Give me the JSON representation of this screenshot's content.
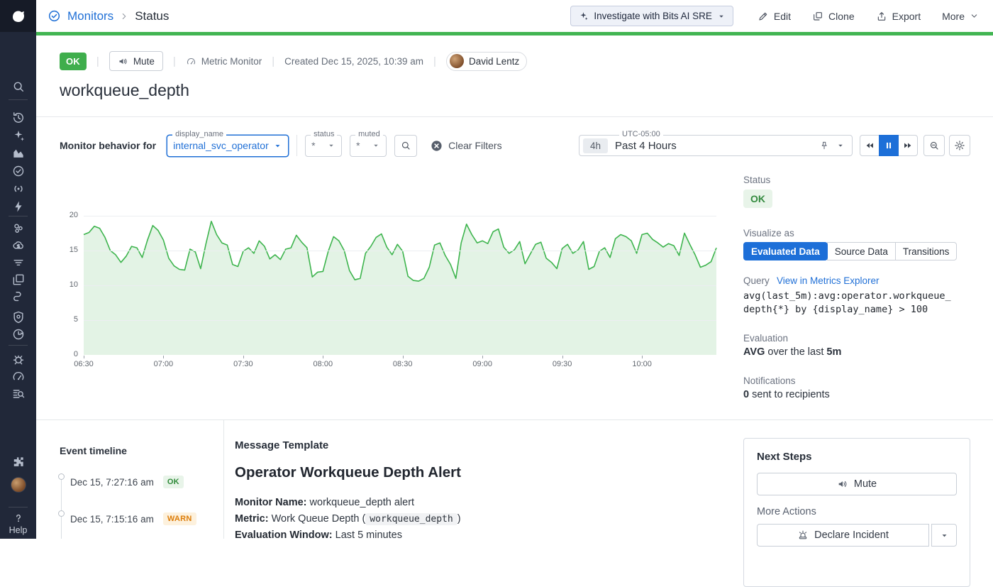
{
  "breadcrumb": {
    "section": "Monitors",
    "page": "Status"
  },
  "topbar": {
    "investigate_label": "Investigate with Bits AI SRE",
    "edit_label": "Edit",
    "clone_label": "Clone",
    "export_label": "Export",
    "more_label": "More"
  },
  "status_bar": {
    "status_badge": "OK",
    "mute_label": "Mute",
    "monitor_type": "Metric Monitor",
    "created": "Created Dec 15, 2025, 10:39 am",
    "author": "David Lentz"
  },
  "title": "workqueue_depth",
  "filters": {
    "behavior_label": "Monitor behavior for",
    "display_name": {
      "label": "display_name",
      "value": "internal_svc_operator"
    },
    "status": {
      "label": "status",
      "value": "*"
    },
    "muted": {
      "label": "muted",
      "value": "*"
    },
    "clear_label": "Clear Filters"
  },
  "time_range": {
    "timezone": "UTC-05:00",
    "shortcut": "4h",
    "label": "Past 4 Hours"
  },
  "right_panel": {
    "status_label": "Status",
    "status_value": "OK",
    "visualize_label": "Visualize as",
    "tabs": [
      {
        "label": "Evaluated Data",
        "active": true
      },
      {
        "label": "Source Data",
        "active": false
      },
      {
        "label": "Transitions",
        "active": false
      }
    ],
    "query_label": "Query",
    "query_link": "View in Metrics Explorer",
    "query_line1": "avg(last_5m):avg:operator.workqueue_",
    "query_line2": "depth{*} by {display_name} > 100",
    "evaluation_label": "Evaluation",
    "evaluation_func": "AVG",
    "evaluation_mid": "over the last",
    "evaluation_window": "5m",
    "notifications_label": "Notifications",
    "notifications_count": "0",
    "notifications_text": "sent to recipients"
  },
  "event_timeline": {
    "title": "Event timeline",
    "events": [
      {
        "time": "Dec 15, 7:27:16 am",
        "status": "OK"
      },
      {
        "time": "Dec 15, 7:15:16 am",
        "status": "WARN"
      }
    ]
  },
  "message_template": {
    "section_title": "Message Template",
    "heading": "Operator Workqueue Depth Alert",
    "fields": [
      {
        "label": "Monitor Name:",
        "value": "workqueue_depth alert"
      },
      {
        "label": "Metric:",
        "value_prefix": "Work Queue Depth (",
        "code": "workqueue_depth",
        "value_suffix": ")"
      },
      {
        "label": "Evaluation Window:",
        "value": "Last 5 minutes"
      }
    ]
  },
  "next_steps": {
    "title": "Next Steps",
    "mute_label": "Mute",
    "more_actions_label": "More Actions",
    "declare_label": "Declare Incident"
  },
  "sidebar": {
    "help_label": "Help",
    "icons": [
      "datadog-logo",
      "search",
      "history",
      "bits-ai-sparkles",
      "metrics",
      "monitors",
      "synthetics-broadcast",
      "events-lightning",
      "infrastructure-hexagons",
      "cloud-cost",
      "processes-filter",
      "containers",
      "service-links",
      "security-shield",
      "uptime-clock",
      "bug",
      "gauge",
      "log-search",
      "integrations-puzzle",
      "user-avatar",
      "help"
    ]
  },
  "colors": {
    "ok_green": "#3fae4c",
    "accent_blue": "#1d6fd8",
    "link_blue": "#1f6fd6",
    "warn_orange": "#dd7d09",
    "chart_line": "#3db44d",
    "chart_fill": "#e3f3e5",
    "sidebar_bg": "#212839",
    "status_bar_green": "#42b552"
  },
  "chart_data": {
    "type": "line",
    "title": "",
    "xlabel": "",
    "ylabel": "",
    "legend": false,
    "grid": true,
    "area_fill": true,
    "fill_color": "#e3f3e5",
    "ylim": [
      0,
      20
    ],
    "yticks": [
      0,
      5,
      10,
      15,
      20
    ],
    "x_start": "06:30",
    "x_interval_minutes": 2,
    "x_tick_labels": [
      "06:30",
      "07:00",
      "07:30",
      "08:00",
      "08:30",
      "09:00",
      "09:30",
      "10:00"
    ],
    "x_tick_indices": [
      0,
      15,
      30,
      45,
      60,
      75,
      90,
      105
    ],
    "series": [
      {
        "name": "workqueue_depth",
        "color": "#3db44d",
        "values": [
          17.3,
          17.6,
          18.5,
          18.2,
          16.9,
          15.0,
          14.4,
          13.3,
          14.2,
          15.6,
          15.4,
          14.0,
          16.5,
          18.6,
          17.9,
          16.5,
          13.9,
          12.8,
          12.3,
          12.2,
          15.2,
          14.8,
          12.4,
          16.0,
          19.2,
          17.3,
          16.1,
          15.8,
          13.0,
          12.7,
          14.9,
          15.4,
          14.6,
          16.4,
          15.6,
          13.8,
          14.4,
          13.7,
          15.2,
          15.4,
          17.2,
          16.2,
          15.4,
          11.2,
          11.9,
          12.0,
          14.9,
          17.0,
          16.4,
          15.0,
          12.1,
          10.8,
          11.0,
          14.6,
          15.6,
          16.9,
          17.4,
          15.5,
          14.4,
          15.9,
          14.9,
          11.3,
          10.7,
          10.6,
          11.0,
          12.6,
          15.8,
          16.1,
          14.3,
          13.0,
          11.0,
          16.1,
          18.8,
          17.3,
          16.1,
          16.4,
          16.0,
          17.7,
          18.1,
          15.5,
          14.6,
          15.1,
          16.3,
          13.1,
          14.5,
          15.9,
          16.2,
          13.9,
          13.3,
          12.4,
          15.3,
          15.9,
          14.6,
          15.1,
          16.3,
          12.3,
          12.7,
          14.9,
          15.4,
          14.0,
          16.7,
          17.3,
          17.0,
          16.4,
          14.6,
          17.3,
          17.5,
          16.6,
          16.1,
          15.5,
          16.0,
          15.7,
          14.3,
          17.5,
          15.9,
          14.4,
          12.6,
          12.9,
          13.4,
          15.4
        ]
      }
    ]
  }
}
